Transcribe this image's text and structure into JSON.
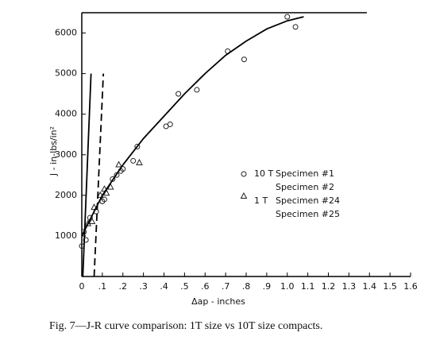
{
  "chart_data": {
    "type": "scatter",
    "xlabel": "Δap - inches",
    "ylabel": "J - in-lbs/in²",
    "xlim": [
      0,
      1.6
    ],
    "ylim": [
      0,
      6500
    ],
    "xticks": [
      0,
      {
        "value": 0.1,
        "label": ".1"
      },
      {
        "value": 0.2,
        "label": ".2"
      },
      {
        "value": 0.3,
        "label": ".3"
      },
      {
        "value": 0.4,
        "label": ".4"
      },
      {
        "value": 0.5,
        "label": ".5"
      },
      {
        "value": 0.6,
        "label": ".6"
      },
      {
        "value": 0.7,
        "label": ".7"
      },
      {
        "value": 0.8,
        "label": ".8"
      },
      {
        "value": 0.9,
        "label": ".9"
      },
      {
        "value": 1,
        "label": "1.0"
      },
      1.1,
      1.2,
      1.3,
      1.4,
      1.5,
      1.6
    ],
    "yticks": [
      1000,
      2000,
      3000,
      4000,
      5000,
      6000
    ],
    "series": [
      {
        "marker": "circle",
        "color": "#222",
        "x": [
          1.0,
          1.04,
          0.71,
          0.79,
          0.47,
          0.56,
          0.41,
          0.43,
          0.27,
          0.25,
          0.17,
          0.15,
          0.19,
          0.2,
          0.11,
          0.1,
          0.07,
          0.04,
          0.01,
          0.02,
          0.0
        ],
        "values": [
          6400,
          6150,
          5550,
          5350,
          4500,
          4600,
          3700,
          3750,
          3200,
          2850,
          2500,
          2400,
          2600,
          2650,
          1900,
          1850,
          1600,
          1450,
          1100,
          900,
          750
        ]
      },
      {
        "marker": "triangle",
        "color": "#222",
        "x": [
          0.18,
          0.28,
          0.12,
          0.09,
          0.14,
          0.06,
          0.03,
          0.05,
          0.11
        ],
        "values": [
          2750,
          2800,
          2050,
          2000,
          2200,
          1700,
          1300,
          1350,
          2150
        ]
      },
      {
        "marker": "line",
        "color": "#000",
        "dash": false,
        "x": [
          0,
          0.1,
          0.2,
          0.3,
          0.4,
          0.5,
          0.6,
          0.7,
          0.8,
          0.9,
          1.0,
          1.08
        ],
        "values": [
          1000,
          2000,
          2750,
          3400,
          3950,
          4500,
          5000,
          5450,
          5800,
          6100,
          6300,
          6400
        ]
      },
      {
        "marker": "line",
        "color": "#000",
        "dash": false,
        "x": [
          0.005,
          0.045
        ],
        "values": [
          0,
          5000
        ]
      },
      {
        "marker": "line",
        "color": "#000",
        "dash": true,
        "x": [
          0.06,
          0.105
        ],
        "values": [
          0,
          5000
        ]
      }
    ],
    "legend": [
      {
        "marker": "circle",
        "size": "10 T",
        "labels": [
          "Specimen #1",
          "Specimen #2"
        ]
      },
      {
        "marker": "triangle",
        "size": "1 T",
        "labels": [
          "Specimen #24",
          "Specimen #25"
        ]
      }
    ],
    "caption": "Fig. 7—J-R curve comparison: 1T size vs 10T size compacts."
  }
}
